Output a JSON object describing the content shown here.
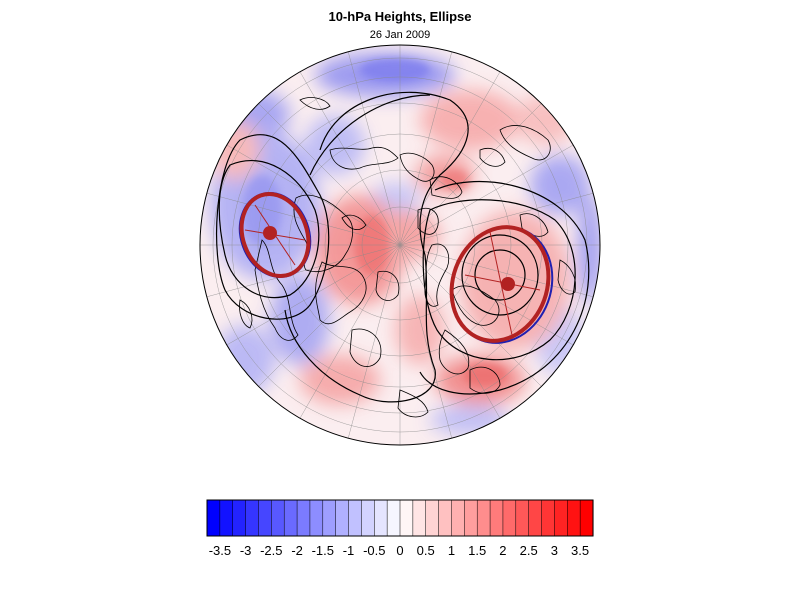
{
  "title": "10-hPa Heights, Ellipse",
  "subtitle": "26 Jan 2009",
  "projection": "north-polar-orthographic",
  "colors": {
    "negative_max": "#0000ff",
    "neutral": "#ffffff",
    "positive_max": "#ff0000",
    "ellipse_outline": "#b22222",
    "ellipse_fit": "#2020b0",
    "contour": "#000000",
    "coastline": "#000000",
    "gridline": "#8a8a8a"
  },
  "colorbar": {
    "min": -3.75,
    "max": 3.75,
    "step": 0.25,
    "labels": [
      "-3.5",
      "-3",
      "-2.5",
      "-2",
      "-1.5",
      "-1",
      "-0.5",
      "0",
      "0.5",
      "1",
      "1.5",
      "2",
      "2.5",
      "3",
      "3.5"
    ]
  },
  "vortex": [
    {
      "name": "left-vortex-lobe",
      "center_marker": true
    },
    {
      "name": "right-vortex-lobe",
      "center_marker": true
    }
  ]
}
